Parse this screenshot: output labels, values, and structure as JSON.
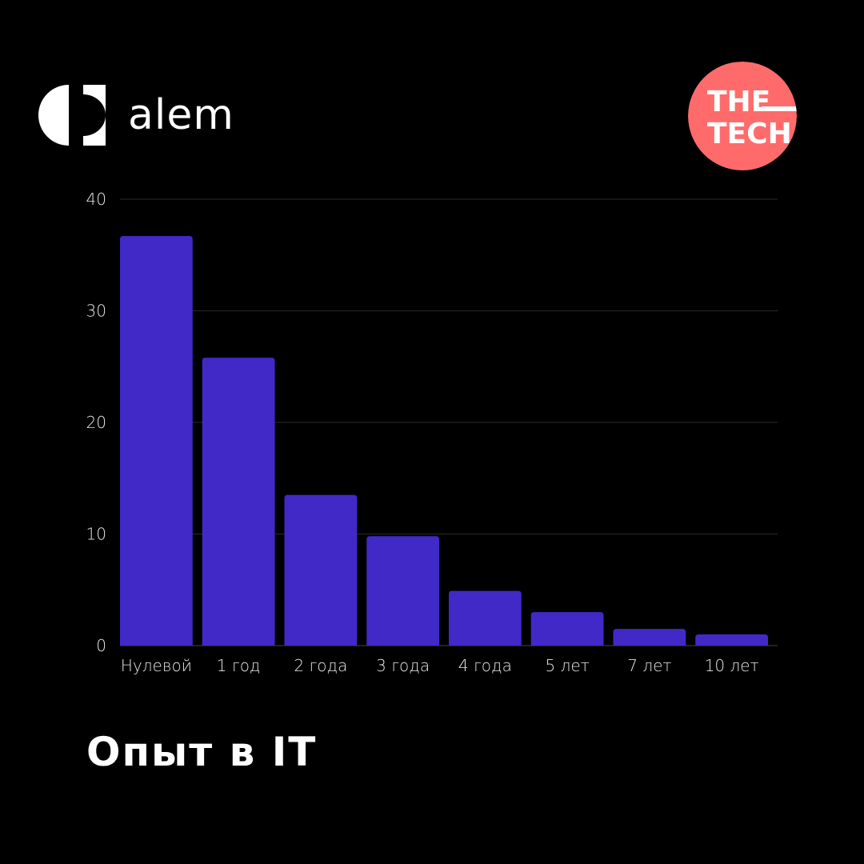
{
  "brand": {
    "name": "alem",
    "logo_icon": "alem-logo-icon"
  },
  "partner": {
    "line1": "THE",
    "line2": "TECH",
    "icon": "the-tech-badge-icon",
    "color": "#ff6b6b"
  },
  "colors": {
    "background": "#000000",
    "bar": "#4129c8",
    "grid": "#2a2a2a",
    "text": "#ffffff"
  },
  "chart_data": {
    "type": "bar",
    "title": "Опыт в IT",
    "xlabel": "",
    "ylabel": "",
    "categories": [
      "Нулевой",
      "1 год",
      "2 года",
      "3 года",
      "4 года",
      "5 лет",
      "7 лет",
      "10 лет"
    ],
    "values": [
      36.7,
      25.8,
      13.5,
      9.8,
      4.9,
      3.0,
      1.5,
      1.0
    ],
    "ylim": [
      0,
      40
    ],
    "yticks": [
      "0",
      "10",
      "20",
      "30",
      "40"
    ],
    "grid": true,
    "legend": "none"
  }
}
